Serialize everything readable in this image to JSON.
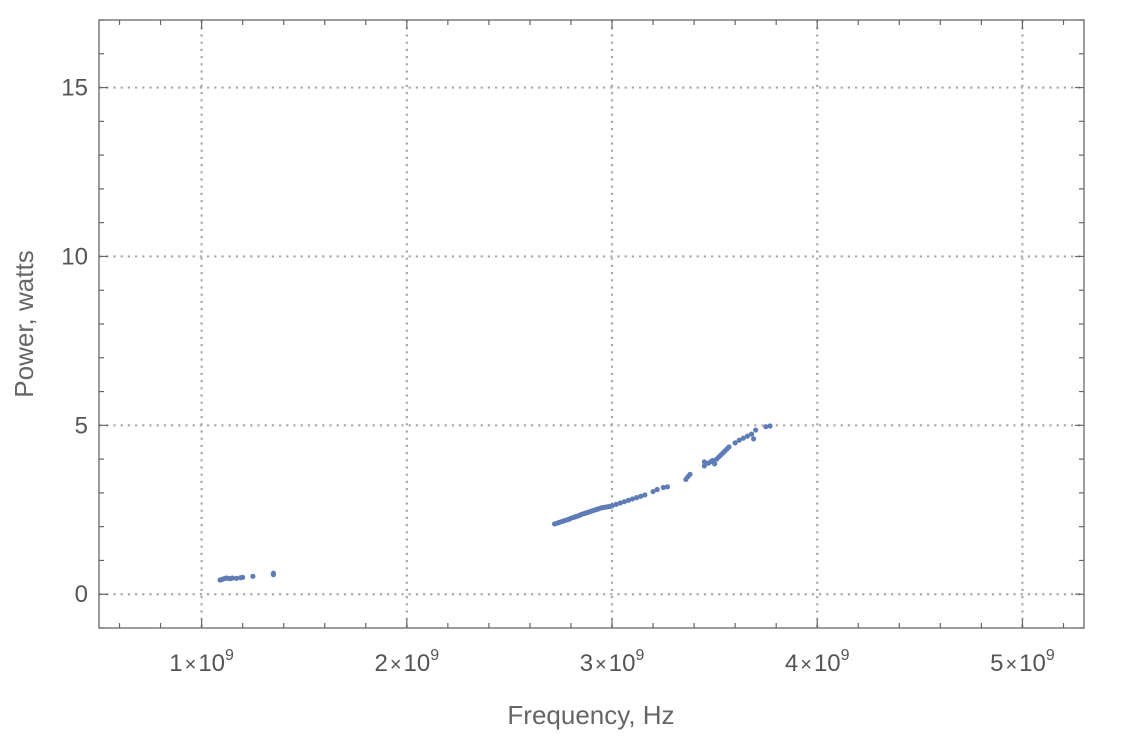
{
  "chart_data": {
    "type": "scatter",
    "title": "",
    "xlabel": "Frequency, Hz",
    "ylabel": "Power, watts",
    "xlim": [
      500000000,
      5300000000
    ],
    "ylim": [
      -1,
      17
    ],
    "grid": true,
    "x_ticks": [
      {
        "value": 1000000000,
        "mantissa": "1",
        "times": "×",
        "base": "10",
        "exp": "9"
      },
      {
        "value": 2000000000,
        "mantissa": "2",
        "times": "×",
        "base": "10",
        "exp": "9"
      },
      {
        "value": 3000000000,
        "mantissa": "3",
        "times": "×",
        "base": "10",
        "exp": "9"
      },
      {
        "value": 4000000000,
        "mantissa": "4",
        "times": "×",
        "base": "10",
        "exp": "9"
      },
      {
        "value": 5000000000,
        "mantissa": "5",
        "times": "×",
        "base": "10",
        "exp": "9"
      }
    ],
    "y_ticks": [
      {
        "value": 0,
        "label": "0"
      },
      {
        "value": 5,
        "label": "5"
      },
      {
        "value": 10,
        "label": "10"
      },
      {
        "value": 15,
        "label": "15"
      }
    ],
    "color": "#5e7cb5",
    "points": [
      [
        1090000000,
        0.42
      ],
      [
        1100000000,
        0.44
      ],
      [
        1110000000,
        0.46
      ],
      [
        1120000000,
        0.48
      ],
      [
        1130000000,
        0.47
      ],
      [
        1140000000,
        0.46
      ],
      [
        1150000000,
        0.48
      ],
      [
        1170000000,
        0.47
      ],
      [
        1190000000,
        0.49
      ],
      [
        1200000000,
        0.5
      ],
      [
        1250000000,
        0.53
      ],
      [
        1350000000,
        0.58
      ],
      [
        1350000000,
        0.62
      ],
      [
        2720000000,
        2.08
      ],
      [
        2730000000,
        2.1
      ],
      [
        2740000000,
        2.12
      ],
      [
        2750000000,
        2.14
      ],
      [
        2760000000,
        2.16
      ],
      [
        2770000000,
        2.18
      ],
      [
        2780000000,
        2.2
      ],
      [
        2790000000,
        2.22
      ],
      [
        2800000000,
        2.25
      ],
      [
        2810000000,
        2.27
      ],
      [
        2820000000,
        2.29
      ],
      [
        2830000000,
        2.31
      ],
      [
        2840000000,
        2.33
      ],
      [
        2850000000,
        2.36
      ],
      [
        2860000000,
        2.38
      ],
      [
        2870000000,
        2.4
      ],
      [
        2880000000,
        2.42
      ],
      [
        2890000000,
        2.44
      ],
      [
        2900000000,
        2.46
      ],
      [
        2910000000,
        2.48
      ],
      [
        2920000000,
        2.5
      ],
      [
        2930000000,
        2.52
      ],
      [
        2940000000,
        2.54
      ],
      [
        2950000000,
        2.56
      ],
      [
        2960000000,
        2.57
      ],
      [
        2970000000,
        2.58
      ],
      [
        2980000000,
        2.59
      ],
      [
        2990000000,
        2.6
      ],
      [
        3000000000,
        2.62
      ],
      [
        3020000000,
        2.66
      ],
      [
        3040000000,
        2.7
      ],
      [
        3060000000,
        2.74
      ],
      [
        3080000000,
        2.78
      ],
      [
        3100000000,
        2.82
      ],
      [
        3120000000,
        2.86
      ],
      [
        3140000000,
        2.9
      ],
      [
        3160000000,
        2.94
      ],
      [
        3200000000,
        3.04
      ],
      [
        3220000000,
        3.1
      ],
      [
        3250000000,
        3.16
      ],
      [
        3270000000,
        3.18
      ],
      [
        3360000000,
        3.4
      ],
      [
        3370000000,
        3.48
      ],
      [
        3380000000,
        3.55
      ],
      [
        3450000000,
        3.8
      ],
      [
        3450000000,
        3.92
      ],
      [
        3470000000,
        3.88
      ],
      [
        3480000000,
        3.92
      ],
      [
        3490000000,
        3.96
      ],
      [
        3500000000,
        3.86
      ],
      [
        3510000000,
        4.0
      ],
      [
        3520000000,
        4.06
      ],
      [
        3530000000,
        4.12
      ],
      [
        3540000000,
        4.18
      ],
      [
        3550000000,
        4.24
      ],
      [
        3560000000,
        4.3
      ],
      [
        3570000000,
        4.36
      ],
      [
        3600000000,
        4.48
      ],
      [
        3620000000,
        4.56
      ],
      [
        3640000000,
        4.62
      ],
      [
        3660000000,
        4.68
      ],
      [
        3680000000,
        4.74
      ],
      [
        3690000000,
        4.6
      ],
      [
        3700000000,
        4.86
      ],
      [
        3750000000,
        4.96
      ],
      [
        3770000000,
        4.98
      ]
    ]
  }
}
